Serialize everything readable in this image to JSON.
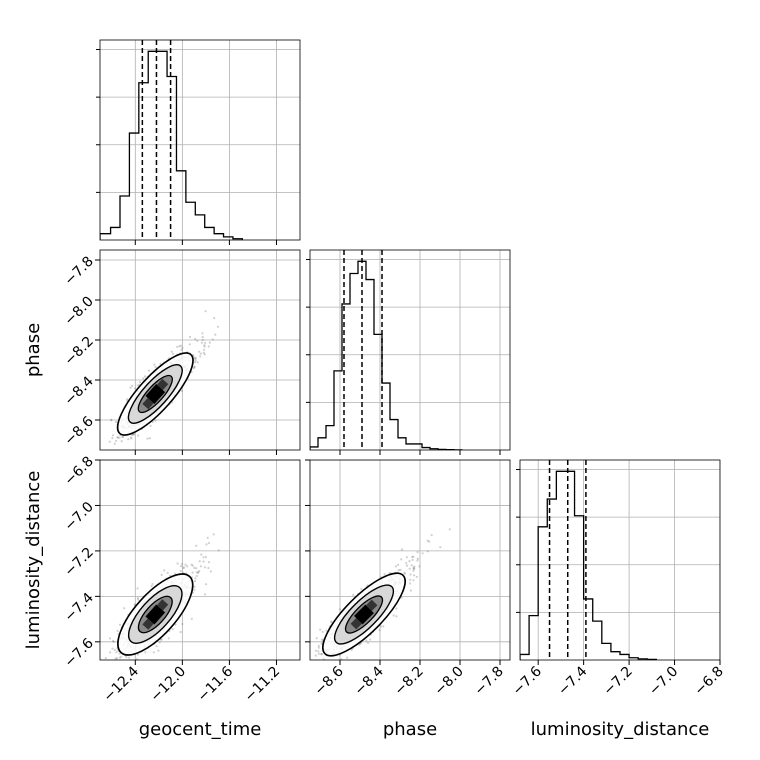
{
  "chart_data": {
    "type": "corner",
    "parameters": [
      "geocent_time",
      "phase",
      "luminosity_distance"
    ],
    "grid": true,
    "panels": [
      {
        "position": "row1-col1",
        "type": "histogram",
        "parameter": "geocent_time",
        "xlim": [
          -12.7,
          -11.0
        ],
        "bin_edges": [
          -12.7,
          -12.61,
          -12.53,
          -12.45,
          -12.37,
          -12.29,
          -12.21,
          -12.13,
          -12.05,
          -11.97,
          -11.89,
          -11.81,
          -11.73,
          -11.65,
          -11.57,
          -11.49
        ],
        "counts": [
          1,
          2,
          7,
          17,
          25,
          30,
          30,
          26,
          11,
          6,
          4,
          2,
          1,
          0.5,
          0.2
        ],
        "quantiles": [
          -12.34,
          -12.22,
          -12.1
        ]
      },
      {
        "position": "row2-col1",
        "type": "density",
        "xparam": "geocent_time",
        "yparam": "phase",
        "xlim": [
          -12.7,
          -11.0
        ],
        "ylim": [
          -8.75,
          -7.75
        ],
        "center": [
          -12.23,
          -8.47
        ],
        "spread": [
          0.13,
          0.085
        ],
        "correlation": 0.82
      },
      {
        "position": "row2-col2",
        "type": "histogram",
        "parameter": "phase",
        "xlim": [
          -8.75,
          -7.75
        ],
        "bin_edges": [
          -8.75,
          -8.71,
          -8.67,
          -8.63,
          -8.59,
          -8.55,
          -8.51,
          -8.47,
          -8.43,
          -8.39,
          -8.35,
          -8.31,
          -8.27,
          -8.23,
          -8.19,
          -8.15,
          -8.11,
          -8.07,
          -8.03,
          -7.99
        ],
        "counts": [
          0.5,
          2,
          4,
          13,
          24,
          29,
          31,
          28,
          19,
          11,
          5,
          2,
          1,
          1,
          0.4,
          0.2,
          0.1,
          0.05,
          0.02
        ],
        "quantiles": [
          -8.58,
          -8.49,
          -8.39
        ]
      },
      {
        "position": "row3-col1",
        "type": "density",
        "xparam": "geocent_time",
        "yparam": "luminosity_distance",
        "xlim": [
          -12.7,
          -11.0
        ],
        "ylim": [
          -7.68,
          -6.8
        ],
        "center": [
          -12.23,
          -7.48
        ],
        "spread": [
          0.13,
          0.075
        ],
        "correlation": 0.75
      },
      {
        "position": "row3-col2",
        "type": "density",
        "xparam": "phase",
        "yparam": "luminosity_distance",
        "xlim": [
          -8.75,
          -7.75
        ],
        "ylim": [
          -7.68,
          -6.8
        ],
        "center": [
          -8.48,
          -7.48
        ],
        "spread": [
          0.085,
          0.075
        ],
        "correlation": 0.8
      },
      {
        "position": "row3-col3",
        "type": "histogram",
        "parameter": "luminosity_distance",
        "xlim": [
          -7.68,
          -6.8
        ],
        "bin_edges": [
          -7.68,
          -7.64,
          -7.6,
          -7.56,
          -7.52,
          -7.48,
          -7.44,
          -7.4,
          -7.36,
          -7.32,
          -7.28,
          -7.24,
          -7.2,
          -7.16,
          -7.12,
          -7.08
        ],
        "counts": [
          1,
          8,
          24,
          29,
          34,
          34,
          26,
          11,
          7,
          3,
          1.5,
          1,
          0.4,
          0.2,
          0.1
        ],
        "quantiles": [
          -7.55,
          -7.47,
          -7.39
        ]
      }
    ],
    "x_tick_labels": {
      "geocent_time": [
        "−12.4",
        "−12.0",
        "−11.6",
        "−11.2"
      ],
      "phase": [
        "−8.6",
        "−8.4",
        "−8.2",
        "−8.0",
        "−7.8"
      ],
      "luminosity_distance": [
        "−7.6",
        "−7.4",
        "−7.2",
        "−7.0",
        "−6.8"
      ]
    },
    "y_tick_labels": {
      "phase": [
        "−7.8",
        "−8.0",
        "−8.2",
        "−8.4",
        "−8.6"
      ],
      "luminosity_distance": [
        "−6.8",
        "−7.0",
        "−7.2",
        "−7.4",
        "−7.6"
      ]
    },
    "x_ticks": {
      "geocent_time": [
        -12.4,
        -12.0,
        -11.6,
        -11.2
      ],
      "phase": [
        -8.6,
        -8.4,
        -8.2,
        -8.0,
        -7.8
      ],
      "luminosity_distance": [
        -7.6,
        -7.4,
        -7.2,
        -7.0,
        -6.8
      ]
    },
    "y_ticks": {
      "phase": [
        -7.8,
        -8.0,
        -8.2,
        -8.4,
        -8.6
      ],
      "luminosity_distance": [
        -6.8,
        -7.0,
        -7.2,
        -7.4,
        -7.6
      ]
    },
    "xlabels": [
      "geocent_time",
      "phase",
      "luminosity_distance"
    ],
    "ylabels": [
      "phase",
      "luminosity_distance"
    ]
  }
}
